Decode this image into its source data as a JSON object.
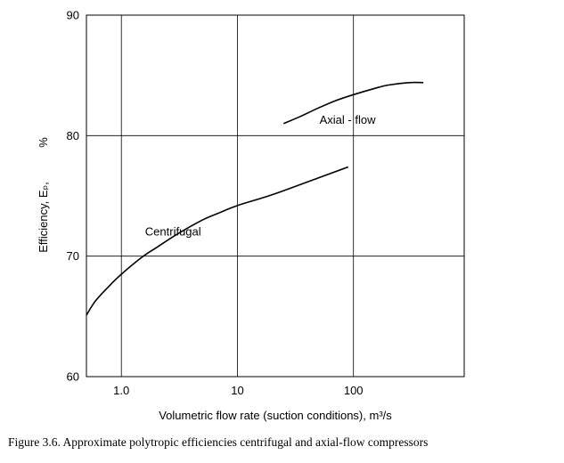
{
  "figure": {
    "caption": "Figure 3.6.   Approximate polytropic efficiencies centrifugal and axial-flow compressors"
  },
  "chart_data": {
    "type": "line",
    "x_scale": "log",
    "xlim": [
      0.5,
      900
    ],
    "ylim": [
      60,
      90
    ],
    "x_ticks": [
      {
        "value": 1,
        "label": "1.0"
      },
      {
        "value": 10,
        "label": "10"
      },
      {
        "value": 100,
        "label": "100"
      }
    ],
    "y_ticks": [
      {
        "value": 60,
        "label": "60"
      },
      {
        "value": 70,
        "label": "70"
      },
      {
        "value": 80,
        "label": "80"
      },
      {
        "value": 90,
        "label": "90"
      }
    ],
    "xlabel": "Volumetric flow rate (suction conditions),    m³/s",
    "ylabel": "Efficiency, Eₚ,",
    "ylabel_unit": "%",
    "grid": true,
    "series": [
      {
        "name": "Centrifugal",
        "x": [
          0.5,
          0.6,
          0.8,
          1.0,
          1.5,
          2,
          3,
          5,
          7,
          10,
          20,
          50,
          90
        ],
        "y": [
          65.1,
          66.3,
          67.6,
          68.5,
          69.9,
          70.7,
          71.8,
          73.0,
          73.6,
          74.2,
          75.1,
          76.5,
          77.4
        ]
      },
      {
        "name": "Axial - flow",
        "x": [
          25,
          35,
          50,
          70,
          100,
          150,
          200,
          300,
          400
        ],
        "y": [
          81.0,
          81.6,
          82.3,
          82.9,
          83.4,
          83.9,
          84.2,
          84.4,
          84.4
        ]
      }
    ],
    "annotations": [
      {
        "text": "Centrifugal",
        "x": 1.6,
        "y": 71.7
      },
      {
        "text": "Axial - flow",
        "x": 51,
        "y": 81.0
      }
    ]
  }
}
